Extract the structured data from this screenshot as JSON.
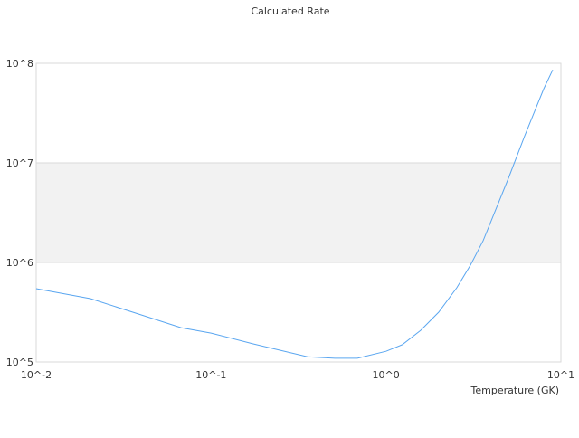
{
  "chart_data": {
    "type": "line",
    "title": "Calculated Rate",
    "xlabel": "Temperature (GK)",
    "ylabel": "",
    "x_scale": "log",
    "y_scale": "log",
    "xlim": [
      0.01,
      10
    ],
    "ylim": [
      100000,
      100000000
    ],
    "x_ticks": [
      {
        "value": 0.01,
        "label": "10^-2"
      },
      {
        "value": 0.1,
        "label": "10^-1"
      },
      {
        "value": 1,
        "label": "10^0"
      },
      {
        "value": 10,
        "label": "10^1"
      }
    ],
    "y_ticks": [
      {
        "value": 100000,
        "label": "10^5"
      },
      {
        "value": 1000000,
        "label": "10^6"
      },
      {
        "value": 10000000,
        "label": "10^7"
      },
      {
        "value": 100000000,
        "label": "10^8"
      }
    ],
    "grid": true,
    "shaded_band": [
      1000000,
      10000000
    ],
    "line_color": "#5aa6f0",
    "band_color": "#f2f2f2",
    "series": [
      {
        "x": [
          0.01,
          0.0204,
          0.037,
          0.0673,
          0.1,
          0.174,
          0.356,
          0.51,
          0.686,
          1.0,
          1.24,
          1.58,
          2.0,
          2.54,
          3.04,
          3.59,
          5.01,
          6.21,
          7.98,
          8.98
        ],
        "y": [
          545000,
          433000,
          310000,
          221000,
          195000,
          152000,
          113000,
          109000,
          109000,
          128000,
          149000,
          208000,
          316000,
          556000,
          940000,
          1650000,
          7000000,
          18700000,
          55600000,
          86000000
        ]
      }
    ]
  }
}
